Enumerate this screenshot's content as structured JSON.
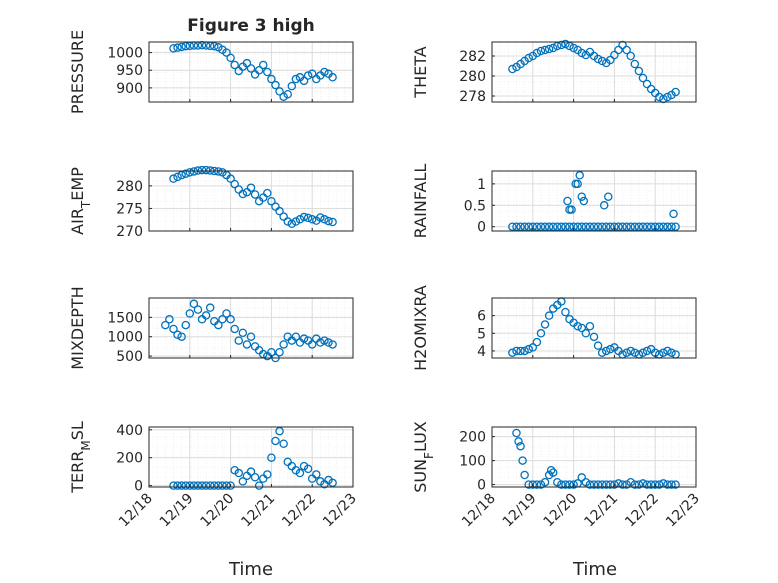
{
  "figure": {
    "title": "Figure 3 high",
    "xlabel": "Time"
  },
  "chart_data": [
    {
      "type": "scatter",
      "panel": "PRESSURE",
      "ylabel": "PRESSURE",
      "ylim": [
        860,
        1030
      ],
      "yticks": [
        1000,
        950,
        900
      ],
      "xlim": [
        0,
        5
      ],
      "xtick_labels": [
        "12/18",
        "12/19",
        "12/20",
        "12/21",
        "12/22",
        "12/23"
      ],
      "marker_color": "#0072BD",
      "grid": true,
      "x": [
        0.6,
        0.7,
        0.8,
        0.9,
        1.0,
        1.1,
        1.2,
        1.3,
        1.4,
        1.5,
        1.6,
        1.7,
        1.8,
        1.9,
        2.0,
        2.1,
        2.2,
        2.3,
        2.4,
        2.5,
        2.6,
        2.7,
        2.8,
        2.9,
        3.0,
        3.1,
        3.2,
        3.3,
        3.4,
        3.5,
        3.6,
        3.7,
        3.8,
        3.9,
        4.0,
        4.1,
        4.2,
        4.3,
        4.4,
        4.5
      ],
      "y": [
        1012,
        1014,
        1016,
        1018,
        1019,
        1020,
        1020,
        1021,
        1020,
        1019,
        1018,
        1015,
        1008,
        1000,
        985,
        965,
        948,
        960,
        970,
        955,
        938,
        950,
        965,
        945,
        925,
        908,
        890,
        875,
        882,
        905,
        925,
        930,
        920,
        935,
        940,
        925,
        935,
        945,
        940,
        930
      ]
    },
    {
      "type": "scatter",
      "panel": "THETA",
      "ylabel": "THETA",
      "ylim": [
        277.4,
        283.4
      ],
      "yticks": [
        282,
        280,
        278
      ],
      "xlim": [
        0,
        5
      ],
      "xtick_labels": [
        "12/18",
        "12/19",
        "12/20",
        "12/21",
        "12/22",
        "12/23"
      ],
      "marker_color": "#0072BD",
      "grid": true,
      "x": [
        0.5,
        0.6,
        0.7,
        0.8,
        0.9,
        1.0,
        1.1,
        1.2,
        1.3,
        1.4,
        1.5,
        1.6,
        1.7,
        1.8,
        1.9,
        2.0,
        2.1,
        2.2,
        2.3,
        2.4,
        2.5,
        2.6,
        2.7,
        2.8,
        2.9,
        3.0,
        3.1,
        3.2,
        3.3,
        3.4,
        3.5,
        3.6,
        3.7,
        3.8,
        3.9,
        4.0,
        4.1,
        4.2,
        4.3,
        4.4,
        4.5
      ],
      "y": [
        280.7,
        280.9,
        281.2,
        281.5,
        281.8,
        282.0,
        282.3,
        282.5,
        282.6,
        282.7,
        282.8,
        283.0,
        283.1,
        283.2,
        283.0,
        282.8,
        282.6,
        282.3,
        282.1,
        282.4,
        282.0,
        281.7,
        281.5,
        281.3,
        281.6,
        282.1,
        282.6,
        283.1,
        282.6,
        282.0,
        281.2,
        280.5,
        279.8,
        279.2,
        278.7,
        278.3,
        277.9,
        277.7,
        277.9,
        278.1,
        278.4
      ]
    },
    {
      "type": "scatter",
      "panel": "AIR_TEMP",
      "ylabel": "AIR_TEMP",
      "ylim": [
        270,
        283.3
      ],
      "yticks": [
        280,
        275,
        270
      ],
      "xlim": [
        0,
        5
      ],
      "xtick_labels": [
        "12/18",
        "12/19",
        "12/20",
        "12/21",
        "12/22",
        "12/23"
      ],
      "marker_color": "#0072BD",
      "grid": true,
      "x": [
        0.6,
        0.7,
        0.8,
        0.9,
        1.0,
        1.1,
        1.2,
        1.3,
        1.4,
        1.5,
        1.6,
        1.7,
        1.8,
        1.9,
        2.0,
        2.1,
        2.2,
        2.3,
        2.4,
        2.5,
        2.6,
        2.7,
        2.8,
        2.9,
        3.0,
        3.1,
        3.2,
        3.3,
        3.4,
        3.5,
        3.6,
        3.7,
        3.8,
        3.9,
        4.0,
        4.1,
        4.2,
        4.3,
        4.4,
        4.5
      ],
      "y": [
        281.6,
        282.0,
        282.4,
        282.7,
        283.0,
        283.2,
        283.4,
        283.5,
        283.5,
        283.4,
        283.3,
        283.2,
        283.0,
        282.4,
        281.6,
        280.4,
        279.2,
        278.2,
        278.6,
        279.6,
        278.1,
        276.6,
        277.4,
        278.4,
        276.6,
        275.4,
        274.4,
        273.2,
        272.1,
        271.6,
        272.1,
        272.6,
        273.1,
        272.9,
        272.6,
        272.3,
        273.0,
        272.6,
        272.2,
        272.0
      ]
    },
    {
      "type": "scatter",
      "panel": "RAINFALL",
      "ylabel": "RAINFALL",
      "ylim": [
        -0.1,
        1.3
      ],
      "yticks": [
        1,
        0.5,
        0
      ],
      "xlim": [
        0,
        5
      ],
      "xtick_labels": [
        "12/18",
        "12/19",
        "12/20",
        "12/21",
        "12/22",
        "12/23"
      ],
      "marker_color": "#0072BD",
      "grid": true,
      "x": [
        0.5,
        0.6,
        0.7,
        0.8,
        0.9,
        1.0,
        1.1,
        1.2,
        1.3,
        1.4,
        1.5,
        1.6,
        1.7,
        1.8,
        1.9,
        2.0,
        2.1,
        2.2,
        2.3,
        2.4,
        2.5,
        2.6,
        2.7,
        2.8,
        2.9,
        3.0,
        3.1,
        3.2,
        3.3,
        3.4,
        3.5,
        3.6,
        3.7,
        3.8,
        3.9,
        4.0,
        4.1,
        4.2,
        4.3,
        4.4,
        4.5,
        1.85,
        1.9,
        1.95,
        2.05,
        2.1,
        2.15,
        2.2,
        2.25,
        2.75,
        2.85,
        4.45
      ],
      "y": [
        0,
        0,
        0,
        0,
        0,
        0,
        0,
        0,
        0,
        0,
        0,
        0,
        0,
        0,
        0,
        0,
        0,
        0,
        0,
        0,
        0,
        0,
        0,
        0,
        0,
        0,
        0,
        0,
        0,
        0,
        0,
        0,
        0,
        0,
        0,
        0,
        0,
        0,
        0,
        0,
        0,
        0.6,
        0.4,
        0.4,
        1.0,
        1.0,
        1.2,
        0.7,
        0.6,
        0.5,
        0.7,
        0.3
      ]
    },
    {
      "type": "scatter",
      "panel": "MIXDEPTH",
      "ylabel": "MIXDEPTH",
      "ylim": [
        450,
        2000
      ],
      "yticks": [
        1500,
        1000,
        500
      ],
      "xlim": [
        0,
        5
      ],
      "xtick_labels": [
        "12/18",
        "12/19",
        "12/20",
        "12/21",
        "12/22",
        "12/23"
      ],
      "marker_color": "#0072BD",
      "grid": true,
      "x": [
        0.4,
        0.5,
        0.6,
        0.7,
        0.8,
        0.9,
        1.0,
        1.1,
        1.2,
        1.3,
        1.4,
        1.5,
        1.6,
        1.7,
        1.8,
        1.9,
        2.0,
        2.1,
        2.2,
        2.3,
        2.4,
        2.5,
        2.6,
        2.7,
        2.8,
        2.9,
        3.0,
        3.1,
        3.2,
        3.3,
        3.4,
        3.5,
        3.6,
        3.7,
        3.8,
        3.9,
        4.0,
        4.1,
        4.2,
        4.3,
        4.4,
        4.5
      ],
      "y": [
        1300,
        1450,
        1200,
        1050,
        1000,
        1300,
        1600,
        1850,
        1700,
        1450,
        1550,
        1750,
        1400,
        1300,
        1450,
        1600,
        1450,
        1200,
        900,
        1100,
        800,
        1000,
        750,
        650,
        550,
        500,
        600,
        450,
        600,
        800,
        1000,
        900,
        1000,
        850,
        950,
        900,
        800,
        950,
        850,
        900,
        850,
        800
      ]
    },
    {
      "type": "scatter",
      "panel": "H2OMIXRA",
      "ylabel": "H2OMIXRA",
      "ylim": [
        3.6,
        7
      ],
      "yticks": [
        6,
        5,
        4
      ],
      "xlim": [
        0,
        5
      ],
      "xtick_labels": [
        "12/18",
        "12/19",
        "12/20",
        "12/21",
        "12/22",
        "12/23"
      ],
      "marker_color": "#0072BD",
      "grid": true,
      "x": [
        0.5,
        0.6,
        0.7,
        0.8,
        0.9,
        1.0,
        1.1,
        1.2,
        1.3,
        1.4,
        1.5,
        1.6,
        1.7,
        1.8,
        1.9,
        2.0,
        2.1,
        2.2,
        2.3,
        2.4,
        2.5,
        2.6,
        2.7,
        2.8,
        2.9,
        3.0,
        3.1,
        3.2,
        3.3,
        3.4,
        3.5,
        3.6,
        3.7,
        3.8,
        3.9,
        4.0,
        4.1,
        4.2,
        4.3,
        4.4,
        4.5
      ],
      "y": [
        3.9,
        4.0,
        4.0,
        4.0,
        4.1,
        4.2,
        4.5,
        5.0,
        5.5,
        6.0,
        6.4,
        6.6,
        6.8,
        6.2,
        5.8,
        5.6,
        5.4,
        5.3,
        5.0,
        5.4,
        4.8,
        4.3,
        3.9,
        4.0,
        4.1,
        4.2,
        4.0,
        3.8,
        3.9,
        4.0,
        3.9,
        3.8,
        3.9,
        4.0,
        4.1,
        3.9,
        3.8,
        3.9,
        4.0,
        3.9,
        3.8
      ]
    },
    {
      "type": "scatter",
      "panel": "TERR_MSL",
      "ylabel": "TERR_MSL",
      "ylim": [
        -10,
        420
      ],
      "yticks": [
        400,
        200,
        0
      ],
      "xlim": [
        0,
        5
      ],
      "xtick_labels": [
        "12/18",
        "12/19",
        "12/20",
        "12/21",
        "12/22",
        "12/23"
      ],
      "marker_color": "#0072BD",
      "grid": true,
      "x": [
        0.6,
        0.7,
        0.8,
        0.9,
        1.0,
        1.1,
        1.2,
        1.3,
        1.4,
        1.5,
        1.6,
        1.7,
        1.8,
        1.9,
        2.0,
        2.1,
        2.2,
        2.3,
        2.4,
        2.5,
        2.6,
        2.7,
        2.8,
        2.9,
        3.0,
        3.1,
        3.2,
        3.3,
        3.4,
        3.5,
        3.6,
        3.7,
        3.8,
        3.9,
        4.0,
        4.1,
        4.2,
        4.3,
        4.4,
        4.5
      ],
      "y": [
        0,
        0,
        0,
        0,
        0,
        0,
        0,
        0,
        0,
        0,
        0,
        0,
        0,
        0,
        0,
        110,
        90,
        30,
        70,
        100,
        60,
        0,
        50,
        80,
        200,
        320,
        390,
        300,
        170,
        140,
        110,
        90,
        140,
        120,
        50,
        80,
        30,
        10,
        40,
        20
      ]
    },
    {
      "type": "scatter",
      "panel": "SUN_FLUX",
      "ylabel": "SUN_FLUX",
      "ylim": [
        -10,
        240
      ],
      "yticks": [
        200,
        100,
        0
      ],
      "xlim": [
        0,
        5
      ],
      "xtick_labels": [
        "12/18",
        "12/19",
        "12/20",
        "12/21",
        "12/22",
        "12/23"
      ],
      "marker_color": "#0072BD",
      "grid": true,
      "x": [
        0.6,
        0.65,
        0.7,
        0.75,
        0.8,
        0.9,
        1.0,
        1.1,
        1.2,
        1.3,
        1.4,
        1.45,
        1.5,
        1.6,
        1.7,
        1.8,
        1.9,
        2.0,
        2.1,
        2.2,
        2.3,
        2.4,
        2.5,
        2.6,
        2.7,
        2.8,
        2.9,
        3.0,
        3.1,
        3.2,
        3.3,
        3.4,
        3.5,
        3.6,
        3.7,
        3.8,
        3.9,
        4.0,
        4.1,
        4.2,
        4.3,
        4.4,
        4.5
      ],
      "y": [
        215,
        180,
        160,
        100,
        40,
        0,
        0,
        0,
        0,
        10,
        40,
        60,
        50,
        10,
        0,
        0,
        0,
        0,
        5,
        30,
        10,
        0,
        0,
        0,
        0,
        0,
        0,
        0,
        5,
        0,
        0,
        10,
        0,
        0,
        5,
        0,
        0,
        0,
        0,
        5,
        0,
        0,
        0
      ]
    }
  ]
}
